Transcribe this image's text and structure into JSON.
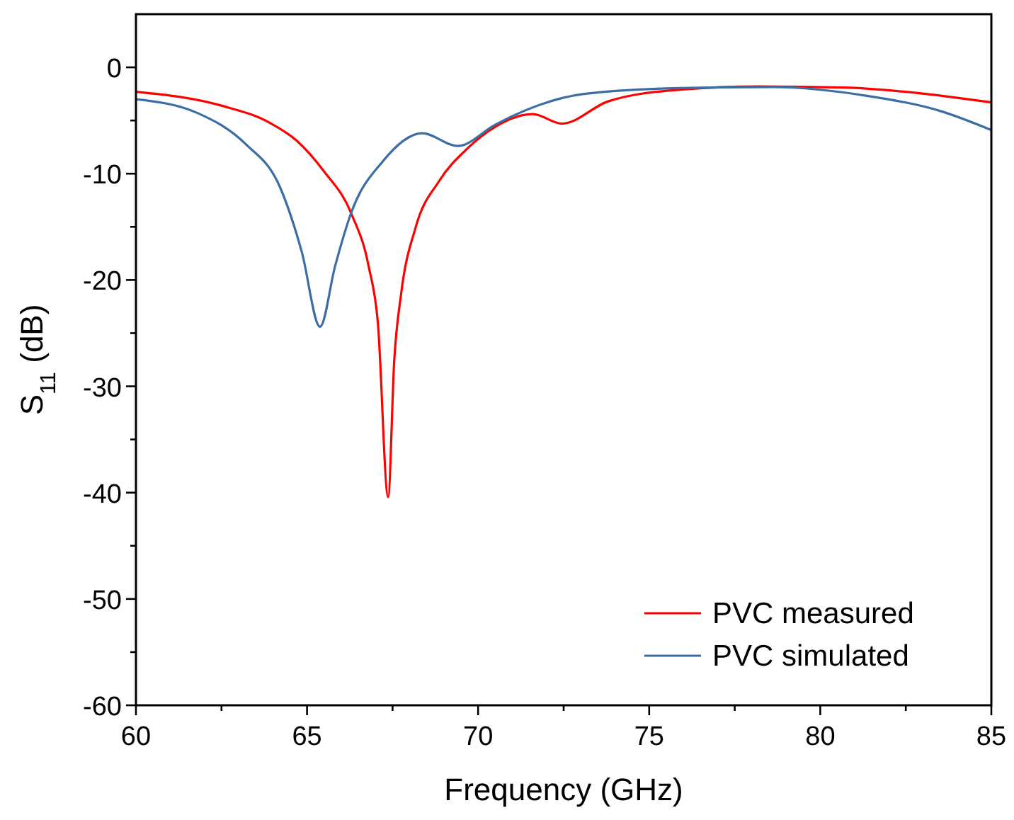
{
  "chart_data": {
    "type": "line",
    "xlabel": "Frequency (GHz)",
    "ylabel": "S$_{11}$ (dB)",
    "xlim": [
      60,
      85
    ],
    "ylim": [
      -60,
      5
    ],
    "xticks": [
      60,
      {
        "value": 62.5,
        "label": null
      },
      65,
      {
        "value": 67.5,
        "label": null
      },
      70,
      {
        "value": 72.5,
        "label": null
      },
      75,
      {
        "value": 77.5,
        "label": null
      },
      80,
      {
        "value": 82.5,
        "label": null
      },
      85
    ],
    "yticks": [
      -60,
      {
        "value": -55,
        "label": null
      },
      -50,
      {
        "value": -45,
        "label": null
      },
      -40,
      {
        "value": -35,
        "label": null
      },
      -30,
      {
        "value": -25,
        "label": null
      },
      -20,
      {
        "value": -15,
        "label": null
      },
      -10,
      {
        "value": -5,
        "label": null
      },
      0
    ],
    "legend": "bottom right",
    "grid": false,
    "series": [
      {
        "name": "PVC measured",
        "color": "#ff0000",
        "x": [
          60,
          62.5,
          63.9,
          64.7,
          65.5,
          66.3,
          66.8,
          67.07,
          67.37,
          67.55,
          67.75,
          68.17,
          68.86,
          69.7,
          70.5,
          71.3,
          71.6,
          72.45,
          73.8,
          75.9,
          78.2,
          80.7,
          82.8,
          85
        ],
        "values": [
          -2.3,
          -3.6,
          -5.2,
          -6.9,
          -9.8,
          -13.8,
          -18.7,
          -24,
          -40.4,
          -27.5,
          -21.3,
          -15.1,
          -10.7,
          -7.6,
          -5.6,
          -4.5,
          -4.4,
          -5.3,
          -3.2,
          -2.1,
          -1.8,
          -1.9,
          -2.4,
          -3.3
        ]
      },
      {
        "name": "PVC simulated",
        "color": "#3a6ea5",
        "x": [
          60,
          61.8,
          63.2,
          64.2,
          64.85,
          65.38,
          65.82,
          66.3,
          67.2,
          68.37,
          69.4,
          70.5,
          71.06,
          73.1,
          75.9,
          78.65,
          81.4,
          83.5,
          85
        ],
        "values": [
          -3,
          -4.3,
          -7.2,
          -11.2,
          -17.4,
          -24.4,
          -18.7,
          -13.6,
          -8.9,
          -6.2,
          -7.4,
          -5.4,
          -4.5,
          -2.5,
          -1.95,
          -1.86,
          -2.7,
          -4.1,
          -5.9
        ]
      }
    ]
  }
}
